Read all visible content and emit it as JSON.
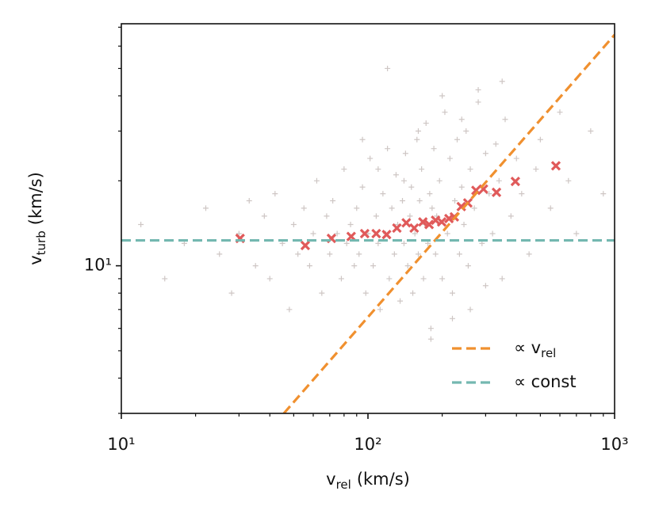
{
  "chart_data": {
    "type": "scatter",
    "xlabel": {
      "main": "v",
      "sub": "rel",
      "unit": "(km/s)"
    },
    "ylabel": {
      "main": "v",
      "sub": "turb",
      "unit": "(km/s)"
    },
    "xscale": "log",
    "yscale": "log",
    "xlim": [
      10,
      1000
    ],
    "ylim": [
      3,
      72
    ],
    "xticks": [
      {
        "value": 10,
        "label": "10¹"
      },
      {
        "value": 100,
        "label": "10²"
      },
      {
        "value": 1000,
        "label": "10³"
      }
    ],
    "yticks": [
      {
        "value": 10,
        "label": "10¹"
      }
    ],
    "xticks_minor": [
      20,
      30,
      40,
      50,
      60,
      70,
      80,
      90,
      200,
      300,
      400,
      500,
      600,
      700,
      800,
      900
    ],
    "yticks_minor": [
      3,
      4,
      5,
      6,
      7,
      8,
      9,
      20,
      30,
      40,
      50,
      60,
      70
    ],
    "legend": "lower right",
    "scatter": [
      {
        "color": "#bdb3b0",
        "marker": "+",
        "x": [
          12,
          15,
          18,
          22,
          25,
          28,
          30,
          33,
          35,
          38,
          40,
          42,
          45,
          48,
          50,
          52,
          55,
          58,
          60,
          62,
          65,
          68,
          70,
          72,
          75,
          78,
          80,
          82,
          85,
          88,
          90,
          92,
          95,
          98,
          100,
          102,
          105,
          108,
          110,
          112,
          115,
          118,
          120,
          122,
          125,
          128,
          130,
          132,
          135,
          138,
          140,
          142,
          145,
          148,
          150,
          152,
          155,
          158,
          160,
          162,
          165,
          168,
          170,
          172,
          175,
          178,
          180,
          182,
          185,
          188,
          190,
          195,
          200,
          205,
          210,
          215,
          220,
          225,
          230,
          235,
          240,
          245,
          250,
          255,
          260,
          270,
          280,
          290,
          300,
          310,
          320,
          330,
          340,
          350,
          360,
          380,
          400,
          420,
          450,
          480,
          500,
          550,
          600,
          650,
          700,
          800,
          900,
          180,
          220,
          260,
          300,
          140,
          160,
          200,
          240,
          280,
          120,
          350,
          110,
          95
        ],
        "values": [
          14,
          9,
          12,
          16,
          11,
          8,
          13,
          17,
          10,
          15,
          9,
          18,
          12,
          7,
          14,
          11,
          16,
          10,
          13,
          20,
          8,
          15,
          11,
          17,
          13,
          9,
          22,
          12,
          14,
          10,
          16,
          11,
          19,
          8,
          13,
          24,
          10,
          15,
          12,
          7,
          18,
          13,
          50,
          9,
          16,
          11,
          21,
          14,
          7.5,
          17,
          12,
          25,
          10,
          15,
          19,
          8,
          13,
          28,
          11,
          17,
          22,
          9,
          14,
          32,
          12,
          18,
          6,
          16,
          26,
          11,
          15,
          20,
          9,
          35,
          13,
          24,
          8,
          17,
          28,
          11,
          19,
          14,
          30,
          10,
          22,
          16,
          38,
          12,
          25,
          18,
          13,
          27,
          20,
          9,
          33,
          15,
          24,
          18,
          11,
          22,
          28,
          16,
          35,
          20,
          13,
          30,
          18,
          5.5,
          6.5,
          7,
          8.5,
          20,
          30,
          40,
          33,
          42,
          26,
          45,
          22,
          28
        ]
      },
      {
        "color": "#e05a5a",
        "marker": "x",
        "x": [
          30.3,
          55.7,
          71.1,
          85.5,
          97,
          108,
          119,
          131,
          143,
          154,
          167,
          177,
          188,
          199,
          213,
          224,
          239,
          254,
          274,
          294,
          332,
          396,
          578
        ],
        "values": [
          12.5,
          11.8,
          12.5,
          12.7,
          13.0,
          13.0,
          12.9,
          13.6,
          14.2,
          13.6,
          14.3,
          14.0,
          14.5,
          14.3,
          14.7,
          14.9,
          16.2,
          16.7,
          18.5,
          18.7,
          18.2,
          19.9,
          22.6
        ]
      }
    ],
    "series": [
      {
        "name": "∝ v",
        "name_sub": "rel",
        "color": "#f0902f",
        "x": [
          45.6,
          1000
        ],
        "values": [
          3,
          65.8
        ]
      },
      {
        "name": "∝ const",
        "color": "#74b8b0",
        "x": [
          10,
          1000
        ],
        "values": [
          12.3,
          12.3
        ]
      }
    ]
  }
}
